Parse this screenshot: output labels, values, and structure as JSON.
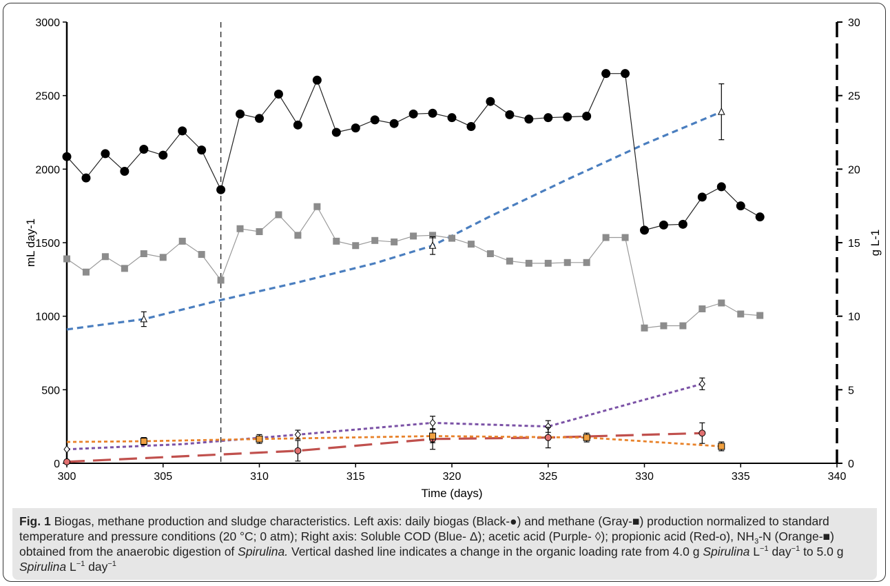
{
  "chart_data": {
    "type": "line",
    "xlabel": "Time (days)",
    "ylabel_left": "mL day-1",
    "ylabel_right": "g L-1",
    "xlim": [
      300,
      340
    ],
    "ylim_left": [
      0,
      3000
    ],
    "ylim_right": [
      0,
      30
    ],
    "x_ticks": [
      "300",
      "305",
      "310",
      "315",
      "320",
      "325",
      "330",
      "335",
      "340"
    ],
    "y_left_ticks": [
      "0",
      "500",
      "1000",
      "1500",
      "2000",
      "2500",
      "3000"
    ],
    "y_right_ticks": [
      "0",
      "5",
      "10",
      "15",
      "20",
      "25",
      "30"
    ],
    "vertical_marker_x": 308,
    "grid": false,
    "series": [
      {
        "axis": "left",
        "color": "#000000",
        "marker": "circle",
        "x": [
          300,
          301,
          302,
          303,
          304,
          305,
          306,
          307,
          308,
          309,
          310,
          311,
          312,
          313,
          314,
          315,
          316,
          317,
          318,
          319,
          320,
          321,
          322,
          323,
          324,
          325,
          326,
          327,
          328,
          329,
          330,
          331,
          332,
          333,
          334,
          335,
          336
        ],
        "y": [
          2085,
          1940,
          2105,
          1985,
          2135,
          2095,
          2260,
          2130,
          1860,
          2375,
          2345,
          2510,
          2300,
          2605,
          2250,
          2280,
          2335,
          2310,
          2375,
          2380,
          2350,
          2290,
          2460,
          2370,
          2340,
          2350,
          2355,
          2360,
          2650,
          2650,
          1585,
          1620,
          1625,
          1810,
          1880,
          1750,
          1675
        ]
      },
      {
        "axis": "left",
        "color": "#888888",
        "marker": "square",
        "x": [
          300,
          301,
          302,
          303,
          304,
          305,
          306,
          307,
          308,
          309,
          310,
          311,
          312,
          313,
          314,
          315,
          316,
          317,
          318,
          319,
          320,
          321,
          322,
          323,
          324,
          325,
          326,
          327,
          328,
          329,
          330,
          331,
          332,
          333,
          334,
          335,
          336
        ],
        "y": [
          1390,
          1300,
          1405,
          1325,
          1425,
          1400,
          1510,
          1420,
          1245,
          1595,
          1575,
          1690,
          1550,
          1745,
          1510,
          1480,
          1515,
          1505,
          1545,
          1550,
          1530,
          1490,
          1425,
          1375,
          1360,
          1360,
          1365,
          1365,
          1535,
          1535,
          920,
          935,
          935,
          1050,
          1090,
          1015,
          1005
        ]
      },
      {
        "axis": "right",
        "color": "#4a7ebf",
        "marker": "triangle",
        "x": [
          304,
          319,
          334
        ],
        "y": [
          9.8,
          14.8,
          23.9
        ],
        "err": [
          0.5,
          0.6,
          1.9
        ],
        "trend_x": [
          300,
          304,
          308,
          312,
          316,
          319,
          322,
          326,
          330,
          334
        ],
        "trend_y": [
          9.1,
          9.8,
          11.1,
          12.3,
          13.6,
          14.8,
          16.8,
          19.3,
          21.7,
          23.9
        ]
      },
      {
        "axis": "right",
        "color": "#7b52a6",
        "marker": "diamond",
        "x": [
          300,
          312,
          319,
          325,
          333
        ],
        "y": [
          0.95,
          1.95,
          2.75,
          2.5,
          5.4
        ],
        "err": [
          0,
          0.3,
          0.45,
          0.4,
          0.4
        ],
        "trend_x": [
          300,
          306,
          312,
          319,
          325,
          328,
          333
        ],
        "trend_y": [
          0.95,
          1.3,
          1.95,
          2.75,
          2.5,
          3.6,
          5.4
        ]
      },
      {
        "axis": "right",
        "color": "#c0504d",
        "marker": "circle-open",
        "x": [
          300,
          312,
          319,
          325,
          333
        ],
        "y": [
          0.1,
          0.85,
          1.65,
          1.75,
          2.05
        ],
        "err": [
          0,
          0.7,
          0.7,
          0.7,
          0.7
        ],
        "trend_x": [
          300,
          312,
          319,
          325,
          333
        ],
        "trend_y": [
          0.1,
          0.85,
          1.65,
          1.75,
          2.05
        ]
      },
      {
        "axis": "right",
        "color": "#e8822a",
        "marker": "square-orange",
        "x": [
          304,
          310,
          319,
          327,
          334
        ],
        "y": [
          1.5,
          1.65,
          1.85,
          1.75,
          1.15
        ],
        "err": [
          0.25,
          0.3,
          0.45,
          0.3,
          0.3
        ],
        "trend_x": [
          300,
          304,
          310,
          319,
          327,
          334
        ],
        "trend_y": [
          1.45,
          1.5,
          1.65,
          1.85,
          1.75,
          1.15
        ]
      }
    ]
  },
  "caption": {
    "label": "Fig. 1",
    "p1": " Biogas, methane production and sludge characteristics. Left axis: daily biogas (Black-●) and methane (Gray-■) production normalized to standard temperature and pressure conditions (20 °C; 0 atm); Right axis: Soluble COD (Blue- Δ); acetic acid (Purple- ◊); propionic acid (Red-o), NH",
    "sub3": "3",
    "p2": "-N (Orange-■) obtained from the anaerobic digestion of ",
    "organism": "Spirulina.",
    "p3": " Vertical dashed line indicates a change in the organic loading rate from 4.0 g ",
    "org2": "Spirulina",
    "p4": " L",
    "sup1": "−1",
    "p5": " day",
    "sup2": "−1",
    "p6": " to 5.0 g ",
    "org3": "Spirulina",
    "p7": " L",
    "sup3": "−1",
    "p8": " day",
    "sup4": "−1"
  }
}
